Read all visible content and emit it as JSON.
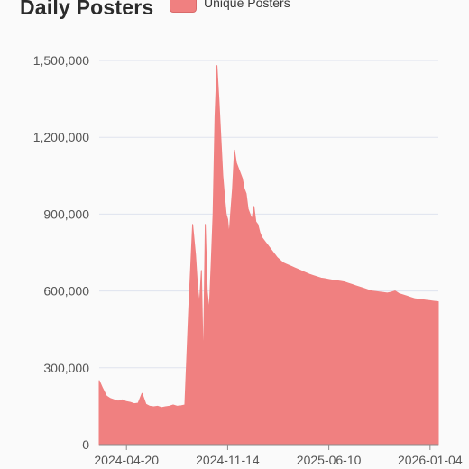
{
  "chart_data": {
    "type": "area",
    "title": "Daily Posters",
    "legend": {
      "placement": "top-left",
      "entries": [
        "Unique Posters"
      ]
    },
    "xlabel": "",
    "ylabel": "",
    "grid": true,
    "ylim": [
      0,
      1500000
    ],
    "xlim": [
      "2024-02-24",
      "2026-01-21"
    ],
    "y_ticks": [
      0,
      300000,
      600000,
      900000,
      1200000,
      1500000
    ],
    "y_tick_labels": [
      "0",
      "300,000",
      "600,000",
      "900,000",
      "1,200,000",
      "1,500,000"
    ],
    "x_ticks": [
      "2024-04-20",
      "2024-11-14",
      "2025-06-10",
      "2026-01-04"
    ],
    "series": [
      {
        "name": "Unique Posters",
        "color": "#f08080",
        "x": [
          "2024-02-24",
          "2024-03-02",
          "2024-03-10",
          "2024-03-18",
          "2024-03-26",
          "2024-04-03",
          "2024-04-11",
          "2024-04-20",
          "2024-04-28",
          "2024-05-06",
          "2024-05-14",
          "2024-05-22",
          "2024-05-30",
          "2024-06-07",
          "2024-06-15",
          "2024-06-23",
          "2024-07-01",
          "2024-07-09",
          "2024-07-17",
          "2024-07-25",
          "2024-08-02",
          "2024-08-10",
          "2024-08-18",
          "2024-08-26",
          "2024-09-03",
          "2024-09-09",
          "2024-09-13",
          "2024-09-17",
          "2024-09-21",
          "2024-09-25",
          "2024-09-29",
          "2024-10-03",
          "2024-10-07",
          "2024-10-11",
          "2024-10-15",
          "2024-10-19",
          "2024-10-23",
          "2024-10-27",
          "2024-10-31",
          "2024-11-04",
          "2024-11-08",
          "2024-11-11",
          "2024-11-14",
          "2024-11-17",
          "2024-11-20",
          "2024-11-24",
          "2024-11-28",
          "2024-12-02",
          "2024-12-06",
          "2024-12-10",
          "2024-12-14",
          "2024-12-18",
          "2024-12-22",
          "2024-12-26",
          "2024-12-30",
          "2025-01-03",
          "2025-01-07",
          "2025-01-11",
          "2025-01-15",
          "2025-01-19",
          "2025-01-23",
          "2025-01-27",
          "2025-01-31",
          "2025-02-04",
          "2025-02-08",
          "2025-02-12",
          "2025-02-16",
          "2025-02-20",
          "2025-02-24",
          "2025-03-02",
          "2025-03-08",
          "2025-03-14",
          "2025-03-20",
          "2025-03-26",
          "2025-04-01",
          "2025-04-07",
          "2025-04-13",
          "2025-04-19",
          "2025-04-25",
          "2025-05-01",
          "2025-05-09",
          "2025-05-17",
          "2025-05-25",
          "2025-06-02",
          "2025-06-10",
          "2025-06-18",
          "2025-06-26",
          "2025-07-04",
          "2025-07-12",
          "2025-07-20",
          "2025-07-28",
          "2025-08-05",
          "2025-08-13",
          "2025-08-21",
          "2025-08-29",
          "2025-09-06",
          "2025-09-14",
          "2025-09-22",
          "2025-09-30",
          "2025-10-08",
          "2025-10-16",
          "2025-10-24",
          "2025-11-01",
          "2025-11-09",
          "2025-11-17",
          "2025-11-25",
          "2025-12-03",
          "2025-12-11",
          "2025-12-19",
          "2025-12-27",
          "2026-01-04",
          "2026-01-12",
          "2026-01-21"
        ],
        "values": [
          250000,
          220000,
          190000,
          180000,
          175000,
          170000,
          175000,
          168000,
          165000,
          160000,
          162000,
          200000,
          158000,
          150000,
          148000,
          150000,
          145000,
          148000,
          150000,
          155000,
          150000,
          152000,
          155000,
          530000,
          860000,
          740000,
          620000,
          550000,
          680000,
          300000,
          860000,
          600000,
          520000,
          700000,
          900000,
          1280000,
          1480000,
          1350000,
          1200000,
          1050000,
          960000,
          900000,
          880000,
          820000,
          900000,
          1000000,
          1150000,
          1100000,
          1080000,
          1060000,
          1040000,
          1000000,
          980000,
          920000,
          900000,
          880000,
          930000,
          870000,
          860000,
          830000,
          810000,
          800000,
          790000,
          780000,
          770000,
          760000,
          750000,
          740000,
          730000,
          720000,
          710000,
          705000,
          700000,
          695000,
          690000,
          685000,
          680000,
          675000,
          670000,
          665000,
          660000,
          655000,
          650000,
          648000,
          645000,
          642000,
          640000,
          638000,
          635000,
          630000,
          625000,
          620000,
          615000,
          610000,
          605000,
          600000,
          598000,
          596000,
          594000,
          592000,
          595000,
          600000,
          590000,
          585000,
          580000,
          575000,
          570000,
          568000,
          566000,
          564000,
          562000,
          560000,
          558000
        ]
      }
    ]
  }
}
